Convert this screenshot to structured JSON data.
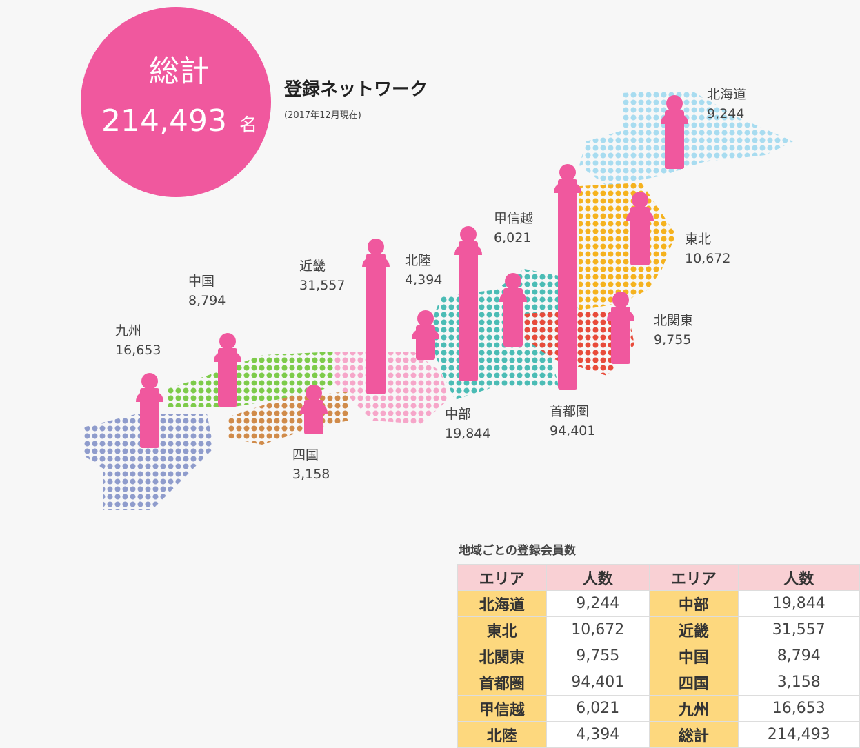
{
  "badge": {
    "label": "総計",
    "value": "214,493",
    "unit": "名"
  },
  "title": "登録ネットワーク",
  "subtitle": "(2017年12月現在)",
  "regions": [
    {
      "name": "北海道",
      "value": "9,244"
    },
    {
      "name": "東北",
      "value": "10,672"
    },
    {
      "name": "北関東",
      "value": "9,755"
    },
    {
      "name": "首都圏",
      "value": "94,401"
    },
    {
      "name": "甲信越",
      "value": "6,021"
    },
    {
      "name": "北陸",
      "value": "4,394"
    },
    {
      "name": "中部",
      "value": "19,844"
    },
    {
      "name": "近畿",
      "value": "31,557"
    },
    {
      "name": "中国",
      "value": "8,794"
    },
    {
      "name": "四国",
      "value": "3,158"
    },
    {
      "name": "九州",
      "value": "16,653"
    }
  ],
  "table": {
    "caption": "地域ごとの登録会員数",
    "header": [
      "エリア",
      "人数",
      "エリア",
      "人数"
    ],
    "rows": [
      [
        "北海道",
        "9,244",
        "中部",
        "19,844"
      ],
      [
        "東北",
        "10,672",
        "近畿",
        "31,557"
      ],
      [
        "北関東",
        "9,755",
        "中国",
        "8,794"
      ],
      [
        "首都圏",
        "94,401",
        "四国",
        "3,158"
      ],
      [
        "甲信越",
        "6,021",
        "九州",
        "16,653"
      ],
      [
        "北陸",
        "4,394",
        "総計",
        "214,493"
      ]
    ]
  }
}
